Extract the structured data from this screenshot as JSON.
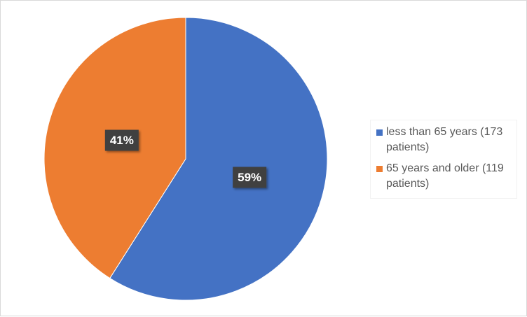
{
  "chart_data": {
    "type": "pie",
    "categories": [
      "less than 65 years (173 patients)",
      "65 years and older (119 patients)"
    ],
    "values": [
      59,
      41
    ],
    "value_labels": [
      "59%",
      "41%"
    ],
    "colors": [
      "#4472c4",
      "#ed7d31"
    ],
    "legend": "right"
  }
}
